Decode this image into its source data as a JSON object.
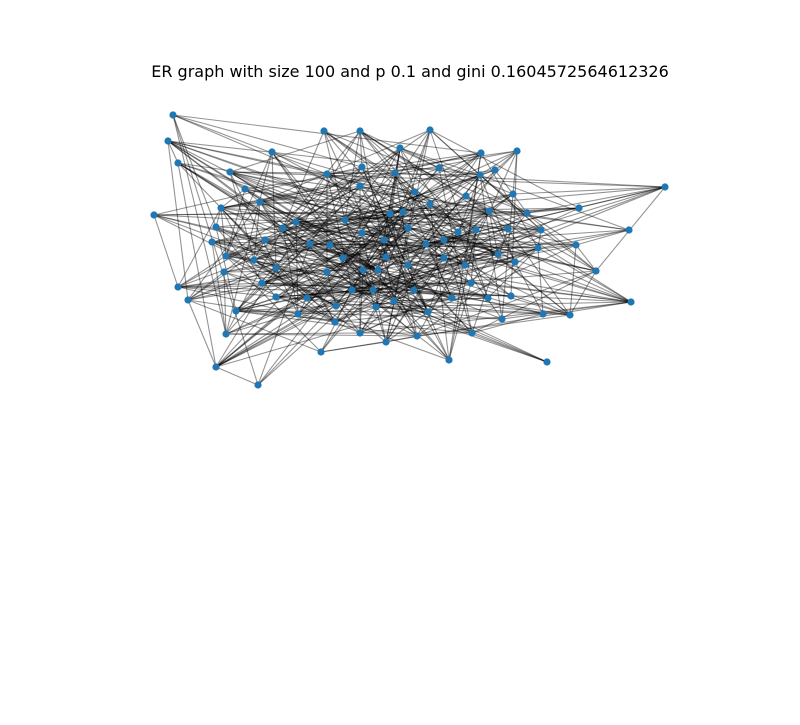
{
  "title": "ER graph with size 100 and p 0.1 and gini 0.1604572564612326",
  "colors": {
    "node": "#1f77b4",
    "edge": "#000000",
    "background": "#ffffff"
  },
  "graph": {
    "nodes": 100,
    "p": 0.1,
    "directed": false
  }
}
